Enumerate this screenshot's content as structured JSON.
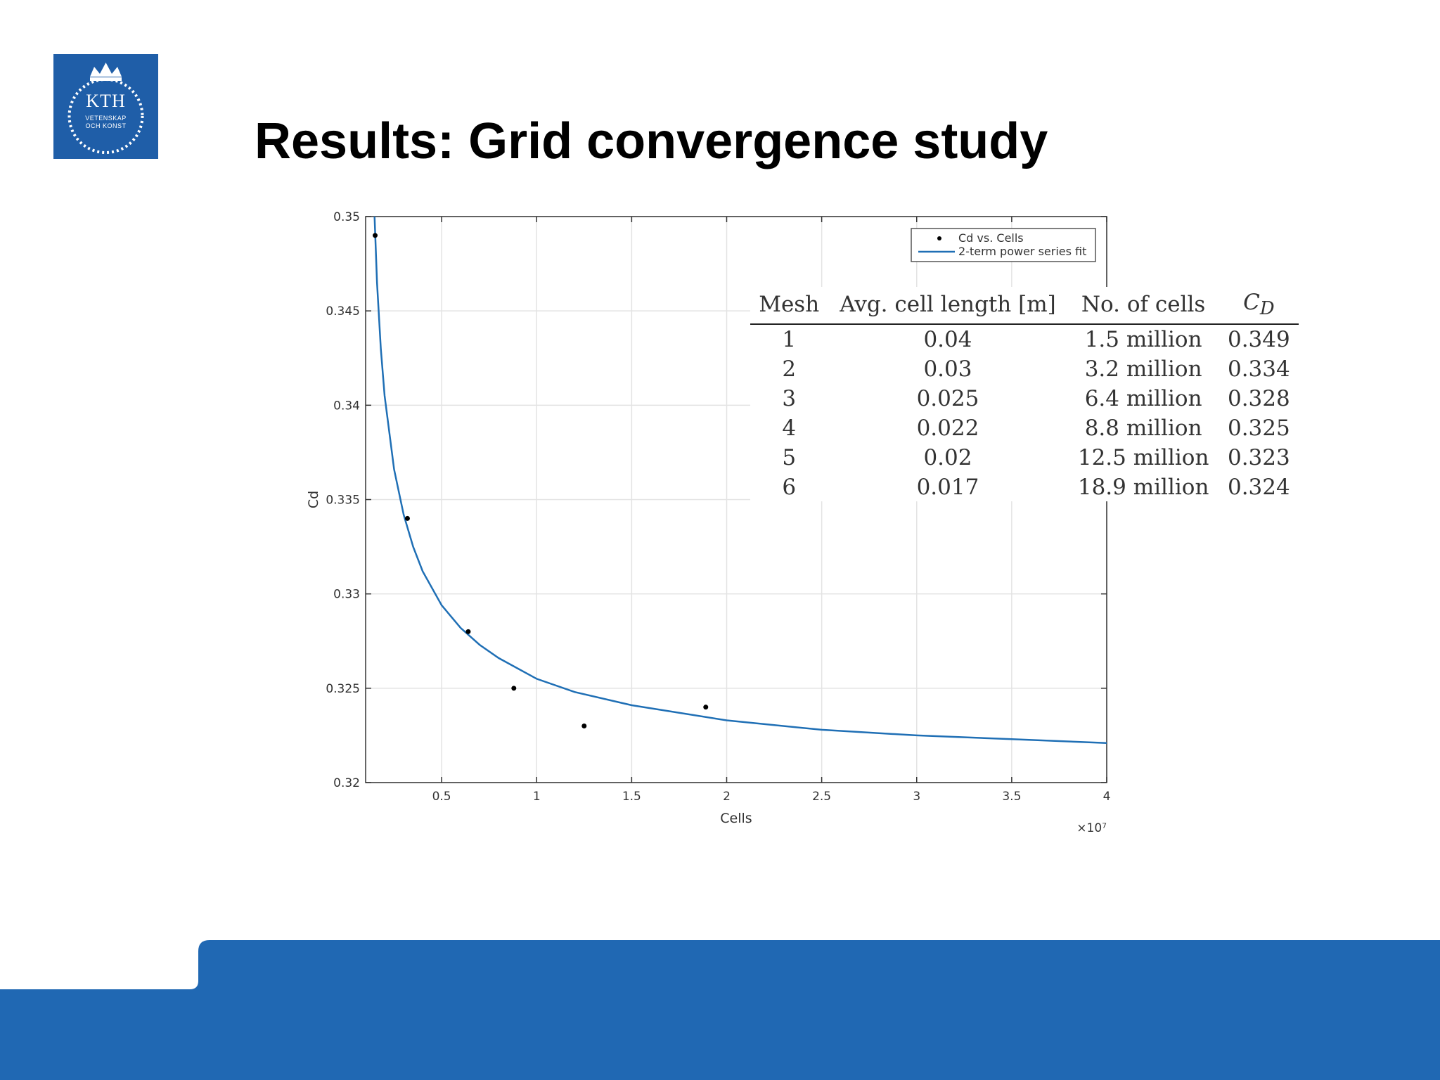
{
  "slide": {
    "title": "Results: Grid convergence study",
    "logo": {
      "text": "KTH",
      "line1": "VETENSKAP",
      "line2": "OCH KONST"
    },
    "brand_color": "#1f5ea8",
    "footer_color": "#2068b3"
  },
  "chart_data": {
    "type": "scatter",
    "xlabel": "Cells",
    "ylabel": "Cd",
    "x_exponent_label": "×10⁷",
    "xlim": [
      0.1,
      4
    ],
    "ylim": [
      0.32,
      0.35
    ],
    "x_ticks": [
      0.5,
      1,
      1.5,
      2,
      2.5,
      3,
      3.5,
      4
    ],
    "x_tick_labels": [
      "0.5",
      "1",
      "1.5",
      "2",
      "2.5",
      "3",
      "3.5",
      "4"
    ],
    "y_ticks": [
      0.32,
      0.325,
      0.33,
      0.335,
      0.34,
      0.345,
      0.35
    ],
    "y_tick_labels": [
      "0.32",
      "0.325",
      "0.33",
      "0.335",
      "0.34",
      "0.345",
      "0.35"
    ],
    "grid": true,
    "legend_position": "top-right",
    "series": [
      {
        "name": "Cd vs. Cells",
        "kind": "points",
        "color": "#000000",
        "x": [
          0.15,
          0.32,
          0.64,
          0.88,
          1.25,
          1.89
        ],
        "y": [
          0.349,
          0.334,
          0.328,
          0.325,
          0.323,
          0.324
        ]
      },
      {
        "name": "2-term power series fit",
        "kind": "line",
        "color": "#1f6fb5",
        "x": [
          0.145,
          0.16,
          0.18,
          0.2,
          0.25,
          0.3,
          0.35,
          0.4,
          0.5,
          0.6,
          0.7,
          0.8,
          1.0,
          1.2,
          1.5,
          2.0,
          2.5,
          3.0,
          3.5,
          4.0
        ],
        "y": [
          0.3505,
          0.3465,
          0.343,
          0.3405,
          0.3366,
          0.3342,
          0.3325,
          0.3312,
          0.3294,
          0.3282,
          0.3273,
          0.3266,
          0.3255,
          0.3248,
          0.3241,
          0.3233,
          0.3228,
          0.3225,
          0.3223,
          0.3221
        ]
      }
    ],
    "table": {
      "headers": [
        "Mesh",
        "Avg. cell length [m]",
        "No. of cells",
        "C_D"
      ],
      "rows": [
        [
          "1",
          "0.04",
          "1.5 million",
          "0.349"
        ],
        [
          "2",
          "0.03",
          "3.2 million",
          "0.334"
        ],
        [
          "3",
          "0.025",
          "6.4 million",
          "0.328"
        ],
        [
          "4",
          "0.022",
          "8.8 million",
          "0.325"
        ],
        [
          "5",
          "0.02",
          "12.5 million",
          "0.323"
        ],
        [
          "6",
          "0.017",
          "18.9 million",
          "0.324"
        ]
      ]
    }
  }
}
